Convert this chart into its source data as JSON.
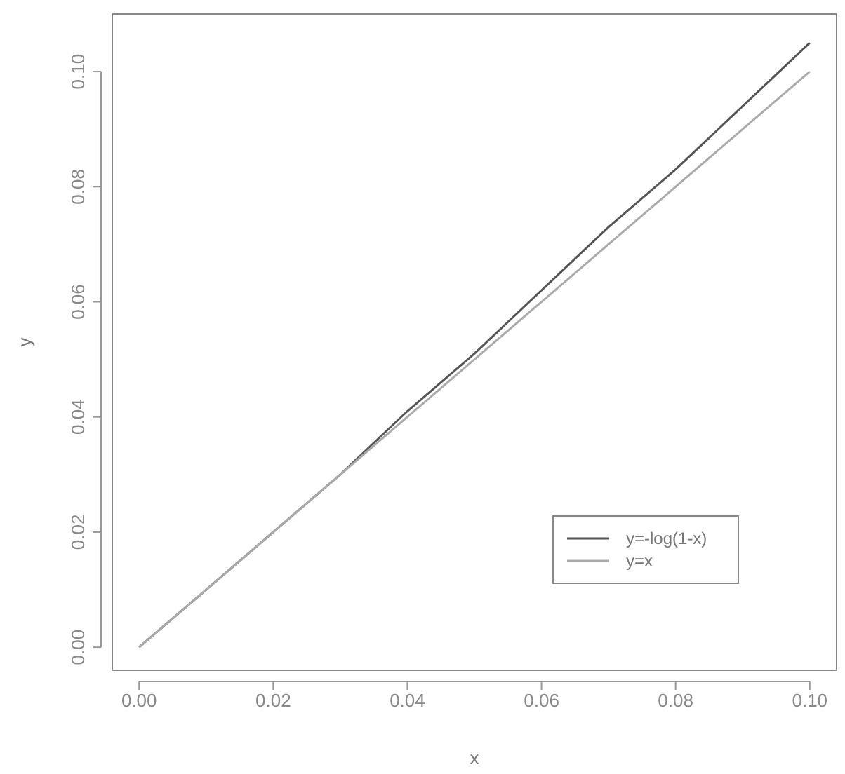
{
  "chart_data": {
    "type": "line",
    "xlabel": "x",
    "ylabel": "y",
    "x": [
      0,
      0.01,
      0.02,
      0.03,
      0.04,
      0.05,
      0.06,
      0.07,
      0.08,
      0.09,
      0.1
    ],
    "series": [
      {
        "name": "y=-log(1-x)",
        "color": "#555555",
        "values": [
          0,
          0.01,
          0.02,
          0.03,
          0.041,
          0.051,
          0.062,
          0.073,
          0.083,
          0.094,
          0.105
        ]
      },
      {
        "name": "y=x",
        "color": "#aaaaaa",
        "values": [
          0,
          0.01,
          0.02,
          0.03,
          0.04,
          0.05,
          0.06,
          0.07,
          0.08,
          0.09,
          0.1
        ]
      }
    ],
    "xlim": [
      -0.004,
      0.104
    ],
    "ylim": [
      -0.004,
      0.11
    ],
    "xticks": [
      {
        "value": 0,
        "label": "0.00"
      },
      {
        "value": 0.02,
        "label": "0.02"
      },
      {
        "value": 0.04,
        "label": "0.04"
      },
      {
        "value": 0.06,
        "label": "0.06"
      },
      {
        "value": 0.08,
        "label": "0.08"
      },
      {
        "value": 0.1,
        "label": "0.10"
      }
    ],
    "yticks": [
      {
        "value": 0,
        "label": "0.00"
      },
      {
        "value": 0.02,
        "label": "0.02"
      },
      {
        "value": 0.04,
        "label": "0.04"
      },
      {
        "value": 0.06,
        "label": "0.06"
      },
      {
        "value": 0.08,
        "label": "0.08"
      },
      {
        "value": 0.1,
        "label": "0.10"
      }
    ],
    "legend": "bottom right",
    "line_style": "solid",
    "grid": false
  }
}
